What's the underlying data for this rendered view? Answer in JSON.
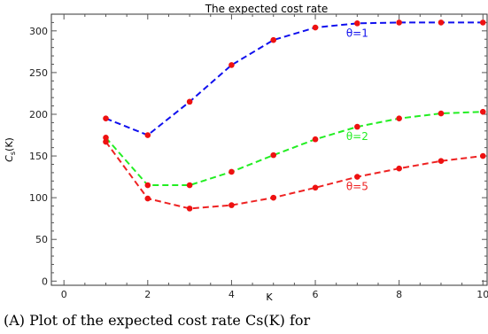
{
  "caption": "(A) Plot of the expected cost rate Cs(K) for",
  "chart_data": {
    "type": "line",
    "title": "The expected cost rate",
    "xlabel": "K",
    "ylabel": "Cs(K)",
    "xlim": [
      -0.3,
      10.1
    ],
    "ylim": [
      -5,
      320
    ],
    "xticks": [
      0,
      2,
      4,
      6,
      8,
      10
    ],
    "yticks": [
      0,
      50,
      100,
      150,
      200,
      250,
      300
    ],
    "grid": false,
    "series": [
      {
        "name": "θ=1",
        "color": "#1010ee",
        "x": [
          1,
          2,
          3,
          4,
          5,
          6,
          7,
          8,
          9,
          10
        ],
        "y": [
          195,
          175,
          215,
          259,
          289,
          304,
          309,
          310,
          310,
          310
        ]
      },
      {
        "name": "θ=2",
        "color": "#22ee22",
        "x": [
          1,
          2,
          3,
          4,
          5,
          6,
          7,
          8,
          9,
          10
        ],
        "y": [
          172,
          115,
          115,
          131,
          151,
          170,
          185,
          195,
          201,
          203
        ]
      },
      {
        "name": "θ=5",
        "color": "#ee2222",
        "x": [
          1,
          2,
          3,
          4,
          5,
          6,
          7,
          8,
          9,
          10
        ],
        "y": [
          167,
          99,
          87,
          91,
          100,
          112,
          125,
          135,
          144,
          150
        ]
      }
    ],
    "marker_color": "#ee1111",
    "label_at_x": [
      7,
      7,
      7
    ]
  }
}
